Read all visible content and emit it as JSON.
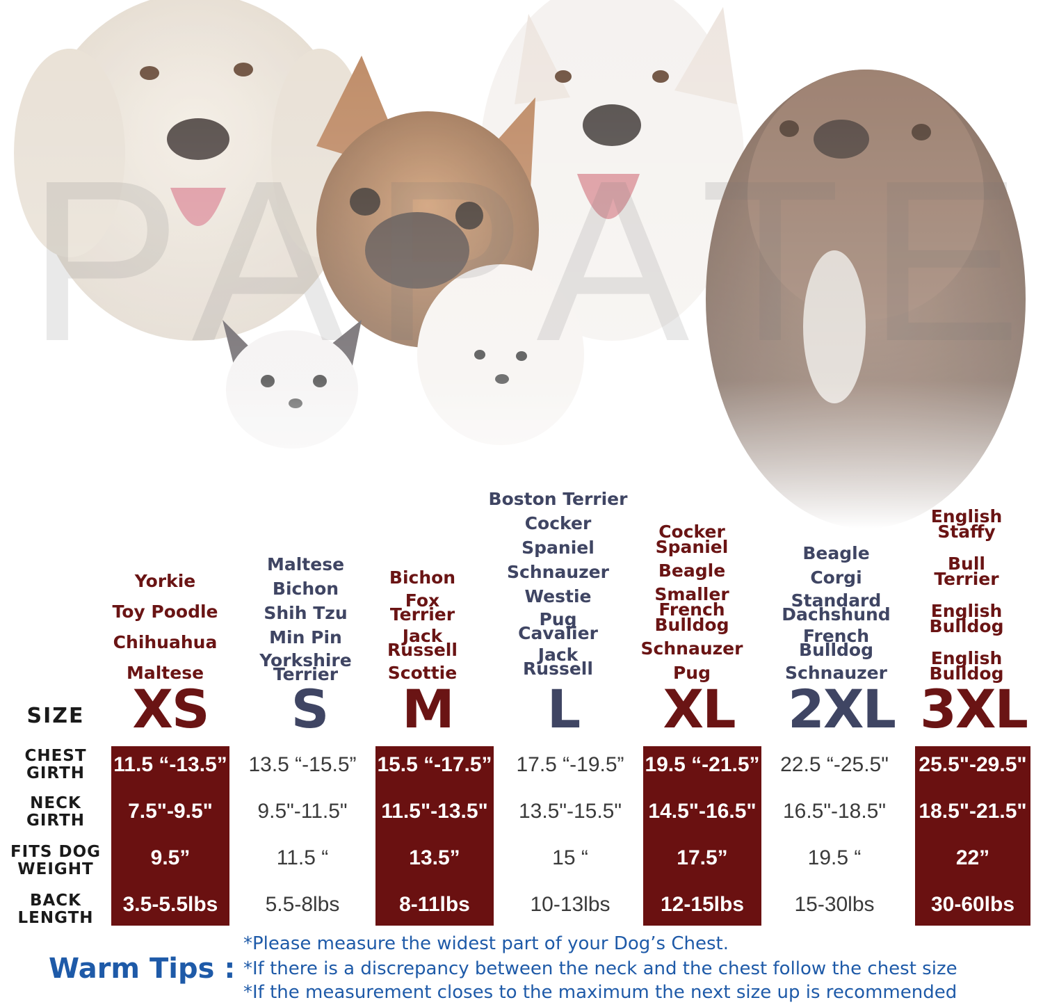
{
  "hero": {
    "watermark": "PAPATE",
    "dogs": [
      "golden-retriever",
      "french-bulldog",
      "white-shepherd",
      "pit-bull",
      "chihuahua",
      "bichon"
    ]
  },
  "colors": {
    "red": "#6a1111",
    "navy": "#3f4563",
    "tip_blue": "#1e5aa8"
  },
  "size_label": "SIZE",
  "row_headers": {
    "chest": "CHEST\nGIRTH",
    "neck": "NECK\nGIRTH",
    "weight": "FITS DOG\nWEIGHT",
    "back": "BACK\nLENGTH"
  },
  "columns": [
    {
      "size": "XS",
      "breeds": [
        "Yorkie",
        "Toy Poodle",
        "Chihuahua",
        "Maltese"
      ],
      "chest": "11.5 “-13.5”",
      "neck": "7.5\"-9.5\"",
      "weight": "9.5”",
      "back": "3.5-5.5lbs"
    },
    {
      "size": "S",
      "breeds": [
        "Maltese",
        "Bichon",
        "Shih Tzu",
        "Min Pin",
        "Yorkshire\nTerrier"
      ],
      "chest": "13.5 “-15.5”",
      "neck": "9.5\"-11.5\"",
      "weight": "11.5 “",
      "back": "5.5-8lbs"
    },
    {
      "size": "M",
      "breeds": [
        "Bichon",
        "Fox\nTerrier",
        "Jack\nRussell",
        "Scottie"
      ],
      "chest": "15.5 “-17.5”",
      "neck": "11.5\"-13.5\"",
      "weight": "13.5”",
      "back": "8-11lbs"
    },
    {
      "size": "L",
      "breeds": [
        "Boston Terrier",
        "Cocker",
        "Spaniel",
        "Schnauzer",
        "Westie",
        "Pug\nCavalier",
        "Jack\nRussell"
      ],
      "chest": "17.5 “-19.5”",
      "neck": "13.5\"-15.5\"",
      "weight": "15 “",
      "back": "10-13lbs"
    },
    {
      "size": "XL",
      "breeds": [
        "Cocker\nSpaniel",
        "Beagle",
        "Smaller\nFrench\nBulldog",
        "Schnauzer",
        "Pug"
      ],
      "chest": "19.5 “-21.5”",
      "neck": "14.5\"-16.5\"",
      "weight": "17.5”",
      "back": "12-15lbs"
    },
    {
      "size": "2XL",
      "breeds": [
        "Beagle",
        "Corgi",
        "Standard\nDachshund",
        "French\nBulldog",
        "Schnauzer"
      ],
      "chest": "22.5 “-25.5\"",
      "neck": "16.5\"-18.5\"",
      "weight": "19.5 “",
      "back": "15-30lbs"
    },
    {
      "size": "3XL",
      "breeds": [
        "English\nStaffy",
        "Bull\nTerrier",
        "English\nBulldog",
        "English\nBulldog"
      ],
      "chest": "25.5\"-29.5\"",
      "neck": "18.5\"-21.5\"",
      "weight": "22”",
      "back": "30-60lbs"
    }
  ],
  "tips": {
    "label": "Warm Tips :",
    "lines": [
      "*Please measure the widest part of your Dog’s Chest.",
      "*If there is a discrepancy between the neck and the chest  follow the chest size",
      "*If the measurement closes to the maximum the next size up is recommended"
    ]
  }
}
